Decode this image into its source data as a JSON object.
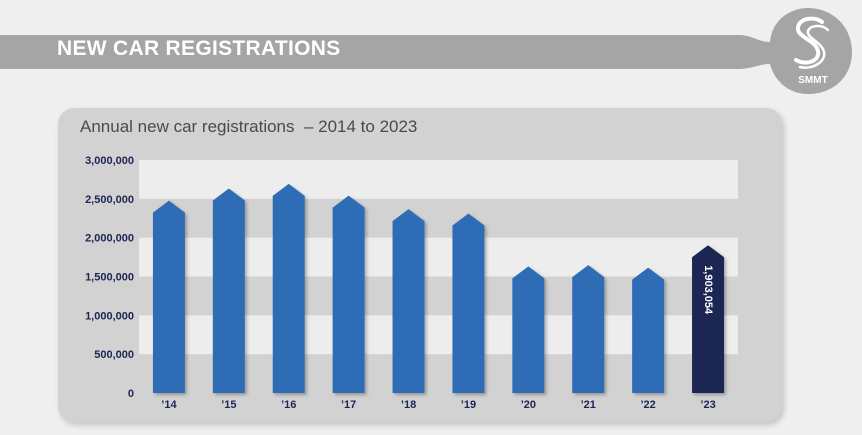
{
  "header": {
    "title": "NEW CAR REGISTRATIONS",
    "logo_text": "SMMT"
  },
  "colors": {
    "banner": "#a5a5a5",
    "bar": "#2f6db5",
    "highlight_bar": "#1e2553",
    "panel": "#d2d2d2",
    "band": "#ededed"
  },
  "chart_data": {
    "type": "bar",
    "title": "Annual new car registrations  – 2014 to 2023",
    "categories": [
      "’14",
      "’15",
      "’16",
      "’17",
      "’18",
      "’19",
      "’20",
      "’21",
      "’22",
      "’23"
    ],
    "values": [
      2476435,
      2633503,
      2692786,
      2540617,
      2367147,
      2311140,
      1631064,
      1647181,
      1614063,
      1903054
    ],
    "highlight_index": 9,
    "data_labels": [
      {
        "index": 9,
        "text": "1,903,054"
      }
    ],
    "yticks": [
      "0",
      "500,000",
      "1,000,000",
      "1,500,000",
      "2,000,000",
      "2,500,000",
      "3,000,000"
    ],
    "ylim": [
      0,
      3000000
    ],
    "grid": "alternating horizontal bands",
    "legend": "none"
  }
}
